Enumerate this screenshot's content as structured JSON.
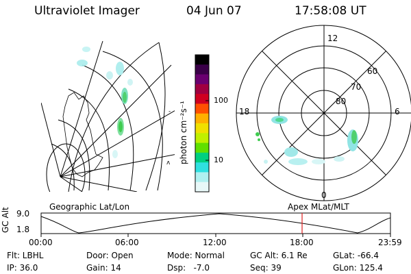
{
  "header": {
    "instrument": "Ultraviolet Imager",
    "date": "04 Jun 07",
    "time": "17:58:08 UT"
  },
  "colorbar": {
    "unit_label": "photon cm⁻²s⁻¹",
    "ticks": [
      "100",
      "10"
    ],
    "colors": [
      "#000000",
      "#3a0048",
      "#6a0070",
      "#a00040",
      "#d00020",
      "#ff5000",
      "#ffb000",
      "#f0e000",
      "#c0f000",
      "#60e000",
      "#00d080",
      "#30e0e0",
      "#b0f0f0",
      "#e8f8f8"
    ]
  },
  "polar_plot": {
    "mlt_labels": [
      "12",
      "18",
      "6",
      "0"
    ],
    "mlat_labels": [
      "60",
      "70",
      "80"
    ]
  },
  "map_labels": {
    "left": "Geographic Lat/Lon",
    "right": "Apex MLat/MLT"
  },
  "timeline": {
    "axis_label": "GC Alt",
    "y_ticks": [
      "9.0",
      "1.8"
    ],
    "x_ticks": [
      "00:00",
      "06:00",
      "12:00",
      "18:00",
      "23:59"
    ],
    "marker_color": "#e02020"
  },
  "status": {
    "filter": "Flt: LBHL",
    "door": "Door: Open",
    "mode": "Mode: Normal",
    "gc_alt": "GC Alt: 6.1 Re",
    "glat": "GLat: -66.4",
    "ip": "IP: 36.0",
    "gain": "Gain: 14",
    "dsp": "Dsp:   -7.0",
    "seq": "Seq: 39",
    "glon": "GLon: 125.4"
  }
}
